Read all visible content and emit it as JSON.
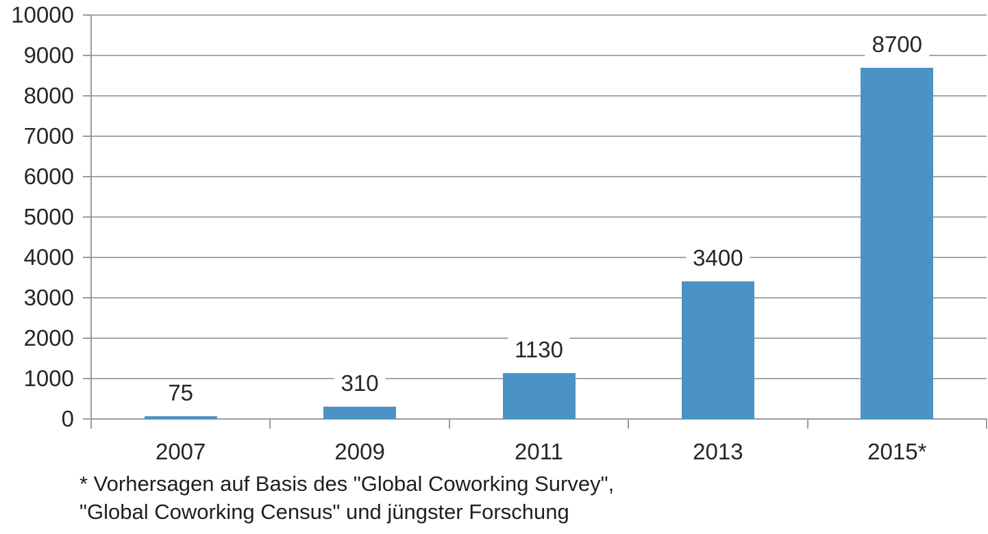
{
  "chart_data": {
    "type": "bar",
    "title": "",
    "xlabel": "",
    "ylabel": "",
    "categories": [
      "2007",
      "2009",
      "2011",
      "2013",
      "2015*"
    ],
    "values": [
      75,
      310,
      1130,
      3400,
      8700
    ],
    "data_labels": [
      "75",
      "310",
      "1130",
      "3400",
      "8700"
    ],
    "ylim": [
      0,
      10000
    ],
    "ytick_step": 1000,
    "ytick_labels": [
      "0",
      "1000",
      "2000",
      "3000",
      "4000",
      "5000",
      "6000",
      "7000",
      "8000",
      "9000",
      "10000"
    ],
    "grid": "horizontal-major",
    "legend": "none",
    "data_label_position": "outside-end",
    "colors": {
      "bar": "#4b93c4",
      "gridline": "#a6a6a6",
      "axis": "#9a9a9a",
      "text": "#262626"
    },
    "footnote": {
      "line1": "* Vorhersagen auf Basis des \"Global Coworking Survey\",",
      "line2": "\"Global Coworking Census\" und jüngster Forschung"
    }
  }
}
